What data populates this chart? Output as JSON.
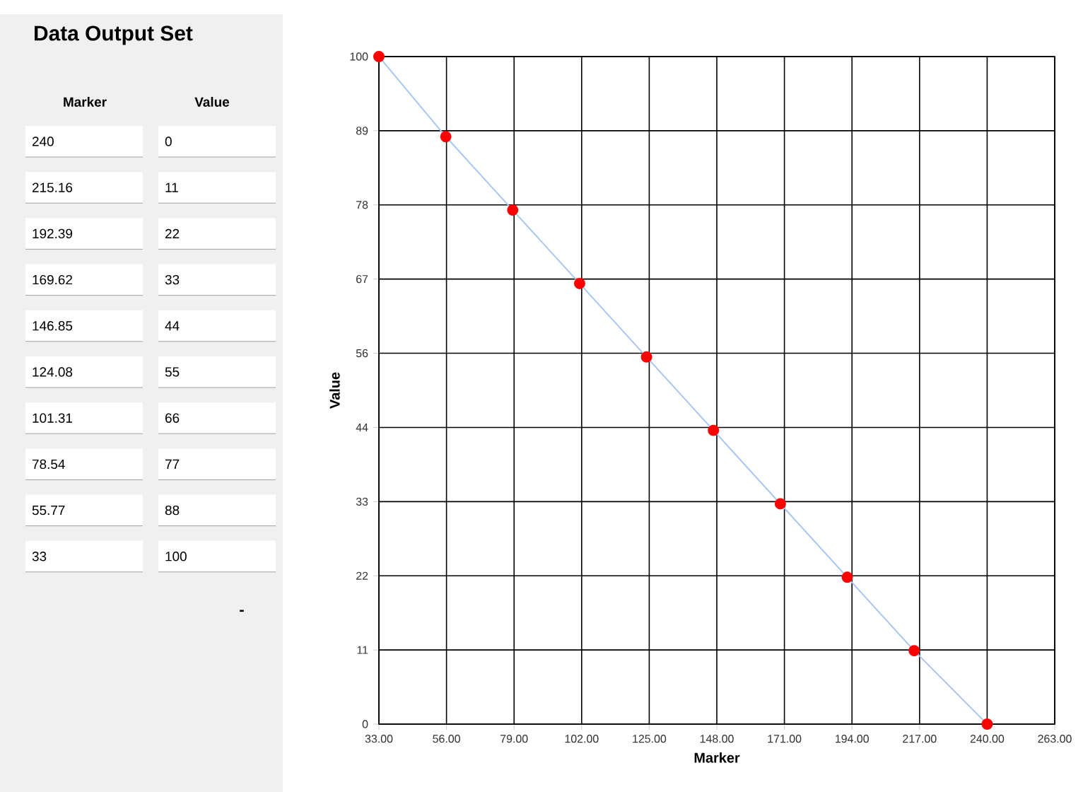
{
  "chart_data": {
    "type": "line",
    "title": "Data Output Set",
    "xlabel": "Marker",
    "ylabel": "Value",
    "x": [
      240,
      215.16,
      192.39,
      169.62,
      146.85,
      124.08,
      101.31,
      78.54,
      55.77,
      33
    ],
    "series": [
      {
        "color": "#a6c8f0",
        "values": [
          0,
          11,
          22,
          33,
          44,
          55,
          66,
          77,
          88,
          100
        ],
        "colors": [
          "#ff0000",
          "#ff0000",
          "#ff0000",
          "#ff0000",
          "#ff0000",
          "#ff0000",
          "#ff0000",
          "#ff0000",
          "#ff0000",
          "#ff0000"
        ]
      }
    ],
    "marker": "circle",
    "grid": true,
    "xlim": [
      33,
      263
    ],
    "ylim": [
      0,
      100
    ],
    "xticks": [
      {
        "value": 33,
        "label": "33.00"
      },
      {
        "value": 56,
        "label": "56.00"
      },
      {
        "value": 79,
        "label": "79.00"
      },
      {
        "value": 102,
        "label": "102.00"
      },
      {
        "value": 125,
        "label": "125.00"
      },
      {
        "value": 148,
        "label": "148.00"
      },
      {
        "value": 171,
        "label": "171.00"
      },
      {
        "value": 194,
        "label": "194.00"
      },
      {
        "value": 217,
        "label": "217.00"
      },
      {
        "value": 240,
        "label": "240.00"
      },
      {
        "value": 263,
        "label": "263.00"
      }
    ],
    "yticks": [
      0,
      {
        "value": 11.11,
        "label": "11"
      },
      {
        "value": 22.22,
        "label": "22"
      },
      {
        "value": 33.33,
        "label": "33"
      },
      {
        "value": 44.44,
        "label": "44"
      },
      {
        "value": 55.56,
        "label": "56"
      },
      {
        "value": 66.67,
        "label": "67"
      },
      {
        "value": 77.78,
        "label": "78"
      },
      {
        "value": 88.89,
        "label": "89"
      },
      100
    ],
    "annotations": [
      "Marker",
      "Value",
      "240",
      "0",
      "215.16",
      "11",
      "192.39",
      "22",
      "169.62",
      "33",
      "146.85",
      "44",
      "124.08",
      "55",
      "101.31",
      "66",
      "78.54",
      "77",
      "55.77",
      "88",
      "33",
      "100",
      "-"
    ]
  }
}
